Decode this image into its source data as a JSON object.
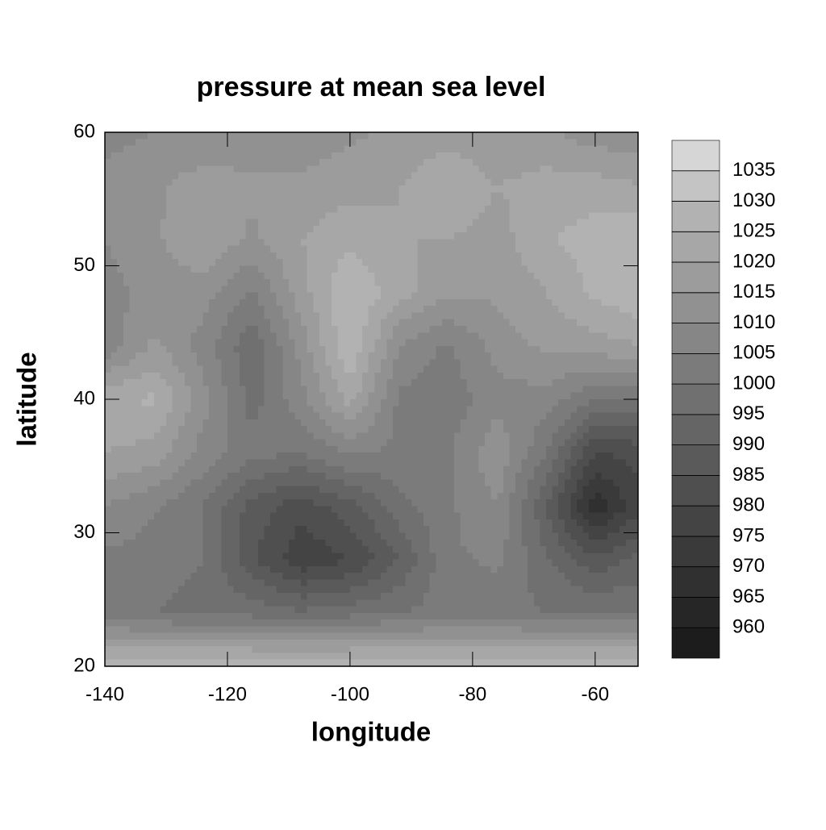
{
  "chart_data": {
    "type": "contour",
    "title": "pressure at mean sea level",
    "x_label": "longitude",
    "y_label": "latitude",
    "xlim": [
      -140,
      -53
    ],
    "ylim": [
      20,
      60
    ],
    "xticks": [
      -140,
      -120,
      -100,
      -80,
      -60
    ],
    "yticks": [
      20,
      30,
      40,
      50,
      60
    ],
    "x": [
      -140,
      -132,
      -124,
      -116,
      -108,
      -100,
      -92,
      -84,
      -76,
      -68,
      -60,
      -52
    ],
    "y": [
      60,
      56,
      52,
      48,
      44,
      40,
      36,
      32,
      28,
      24,
      20
    ],
    "z": [
      [
        1008,
        1010,
        1010,
        1012,
        1012,
        1014,
        1016,
        1018,
        1016,
        1016,
        1012,
        1012
      ],
      [
        1012,
        1014,
        1018,
        1016,
        1016,
        1018,
        1020,
        1024,
        1020,
        1022,
        1022,
        1020
      ],
      [
        1010,
        1014,
        1020,
        1014,
        1020,
        1024,
        1020,
        1020,
        1018,
        1024,
        1028,
        1030
      ],
      [
        1008,
        1012,
        1012,
        1004,
        1018,
        1030,
        1022,
        1016,
        1016,
        1020,
        1026,
        1030
      ],
      [
        1006,
        1016,
        1008,
        996,
        1012,
        1030,
        1010,
        1004,
        1012,
        1016,
        1018,
        1020
      ],
      [
        1024,
        1026,
        1012,
        998,
        1008,
        1022,
        1004,
        1002,
        1008,
        1008,
        1000,
        1000
      ],
      [
        1020,
        1018,
        1008,
        1002,
        1000,
        1006,
        1004,
        1004,
        1014,
        1000,
        980,
        982
      ],
      [
        1010,
        1006,
        1000,
        988,
        982,
        988,
        998,
        1004,
        1010,
        990,
        966,
        980
      ],
      [
        1004,
        1002,
        1000,
        986,
        976,
        980,
        990,
        1004,
        1006,
        996,
        986,
        992
      ],
      [
        1002,
        1000,
        998,
        998,
        996,
        998,
        1000,
        1002,
        1002,
        1000,
        1000,
        1000
      ],
      [
        1030,
        1030,
        1030,
        1030,
        1030,
        1030,
        1030,
        1030,
        1030,
        1030,
        1030,
        1030
      ]
    ],
    "levels": [
      960,
      965,
      970,
      975,
      980,
      985,
      990,
      995,
      1000,
      1005,
      1010,
      1015,
      1020,
      1025,
      1030,
      1035
    ],
    "colors": [
      "#1c1c1c",
      "#262626",
      "#303030",
      "#3a3a3a",
      "#444444",
      "#4f4f4f",
      "#5a5a5a",
      "#656565",
      "#707070",
      "#7b7b7b",
      "#868686",
      "#919191",
      "#9c9c9c",
      "#a7a7a7",
      "#b2b2b2",
      "#c4c4c4",
      "#d6d6d6"
    ]
  }
}
